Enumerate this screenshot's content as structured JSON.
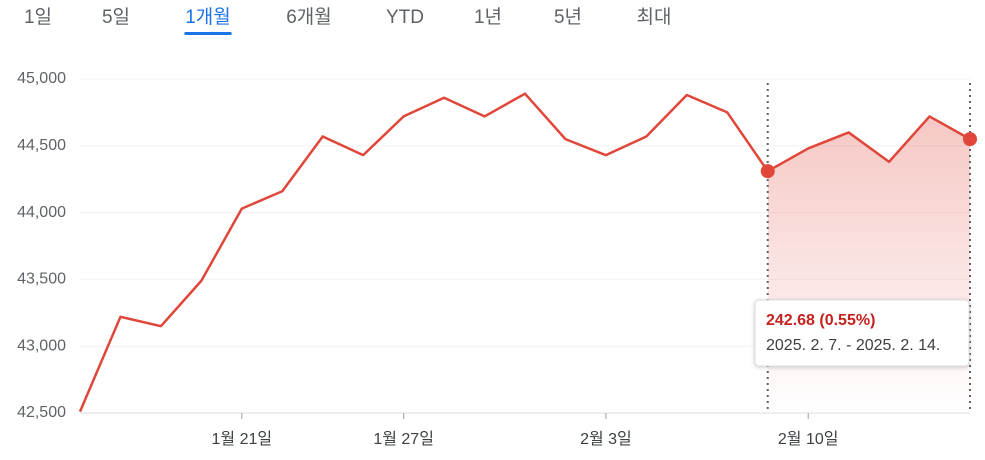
{
  "tabs": [
    "1일",
    "5일",
    "1개월",
    "6개월",
    "YTD",
    "1년",
    "5년",
    "최대"
  ],
  "active_tab": 2,
  "chart_data": {
    "type": "line",
    "categories": [
      null,
      null,
      null,
      null,
      "1월 21일",
      null,
      null,
      null,
      "1월 27일",
      null,
      null,
      null,
      null,
      "2월 3일",
      null,
      null,
      null,
      null,
      "2월 10일",
      null,
      null,
      null,
      null
    ],
    "series": [
      {
        "color": "#e0463a",
        "values": [
          42510,
          43220,
          43150,
          43490,
          44030,
          44160,
          44570,
          44430,
          44720,
          44860,
          44720,
          44890,
          44550,
          44430,
          44570,
          44880,
          44750,
          44310,
          44480,
          44600,
          44380,
          44720,
          44550
        ]
      }
    ],
    "ylim": [
      42500,
      45000
    ],
    "yticks": [
      {
        "value": 42500,
        "label": "42,500"
      },
      {
        "value": 43000,
        "label": "43,000"
      },
      {
        "value": 43500,
        "label": "43,500"
      },
      {
        "value": 44000,
        "label": "44,000"
      },
      {
        "value": 44500,
        "label": "44,500"
      },
      {
        "value": 45000,
        "label": "45,000"
      }
    ],
    "grid": true,
    "highlight_range": [
      17,
      22
    ],
    "tooltip": {
      "change": "242.68 (0.55%)",
      "range": "2025. 2. 7. - 2025. 2. 14."
    }
  }
}
